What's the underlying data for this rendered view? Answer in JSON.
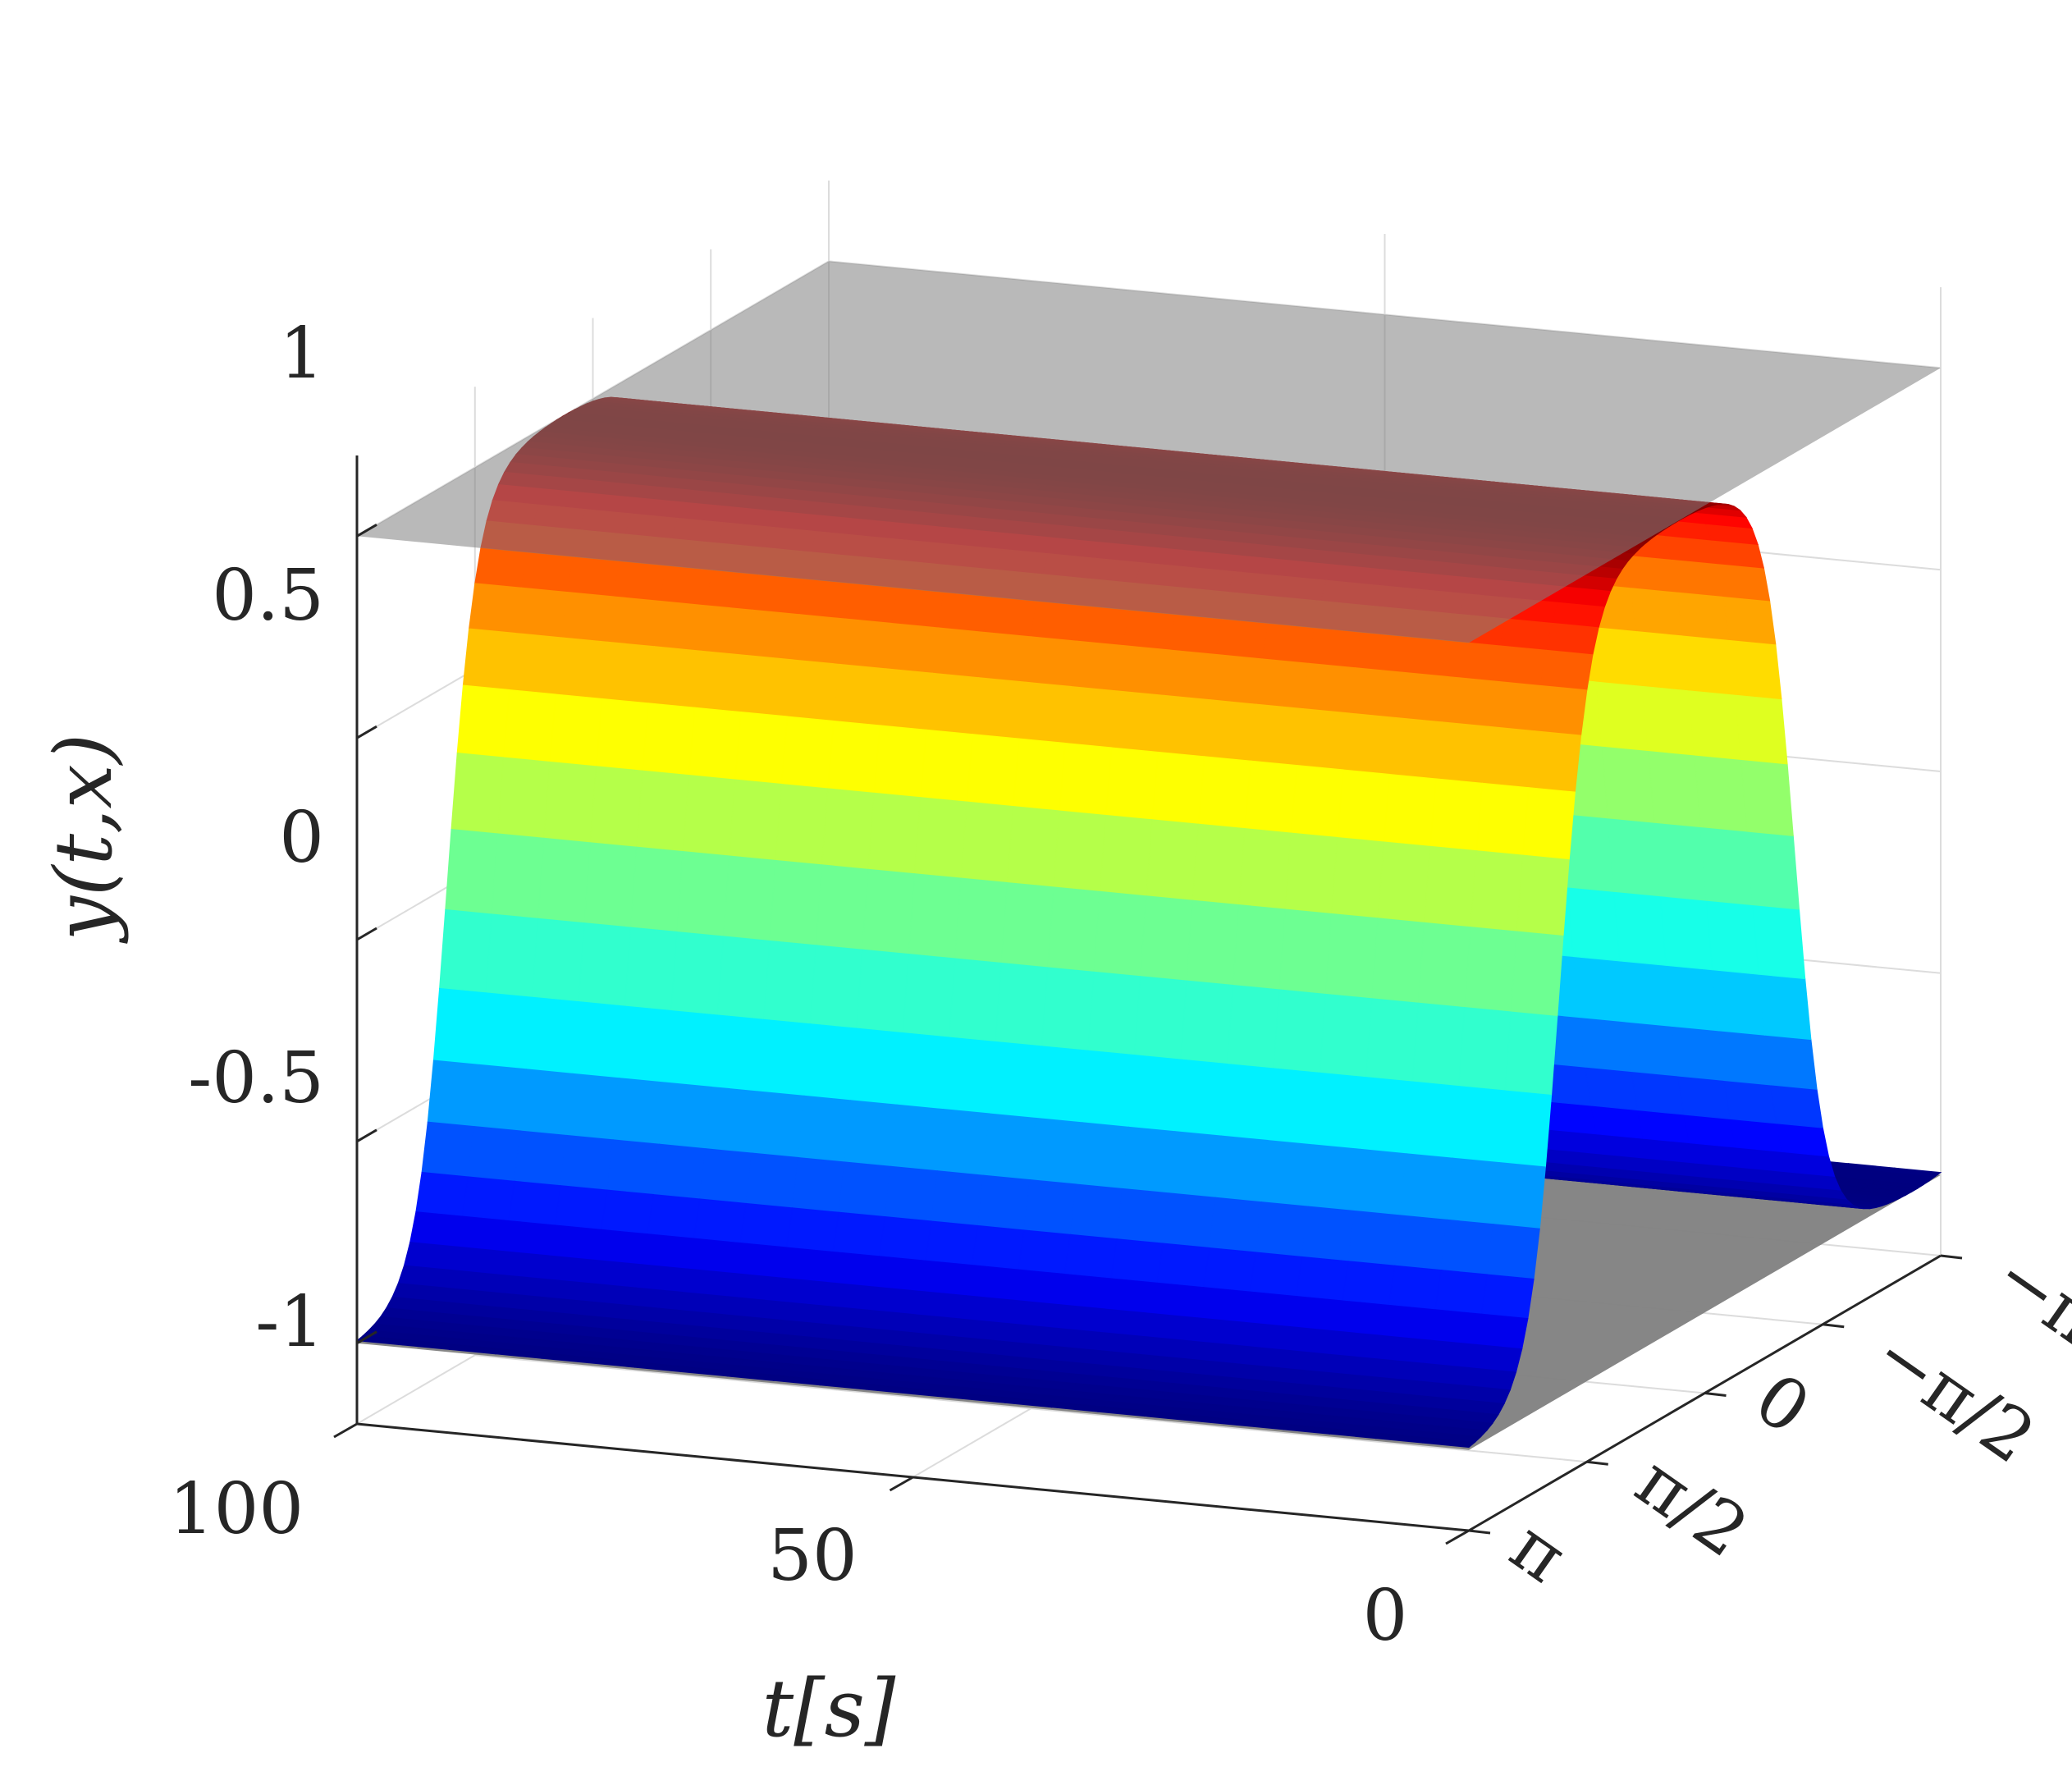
{
  "chart_data": {
    "type": "surface",
    "title": "",
    "xlabel": "t[s]",
    "ylabel": "",
    "zlabel": "y(t,x)",
    "t_ticks": [
      "0",
      "50",
      "100"
    ],
    "x_ticks": [
      "π",
      "π/2",
      "0",
      "−π/2",
      "−π"
    ],
    "z_ticks": [
      "1",
      "0.5",
      "0",
      "-0.5",
      "-1"
    ],
    "t_range": [
      0,
      100
    ],
    "x_range": [
      -3.1416,
      3.1416
    ],
    "z_range": [
      -1.2,
      1.2
    ],
    "grid": true,
    "colormap": "jet",
    "bound_planes": [
      1,
      -1
    ],
    "surface": {
      "description_free_note": "",
      "amplitude": 1,
      "spatial_frequency": 1,
      "t_samples": [
        0,
        10,
        20,
        30,
        40,
        50,
        60,
        70,
        80,
        90,
        100
      ],
      "x_samples": [
        -3.1416,
        -2.3562,
        -1.5708,
        -0.7854,
        0,
        0.7854,
        1.5708,
        2.3562,
        3.1416
      ]
    }
  },
  "colors": {
    "plane": "#808080",
    "axis": "#262626",
    "grid": "#dcdcdc"
  }
}
